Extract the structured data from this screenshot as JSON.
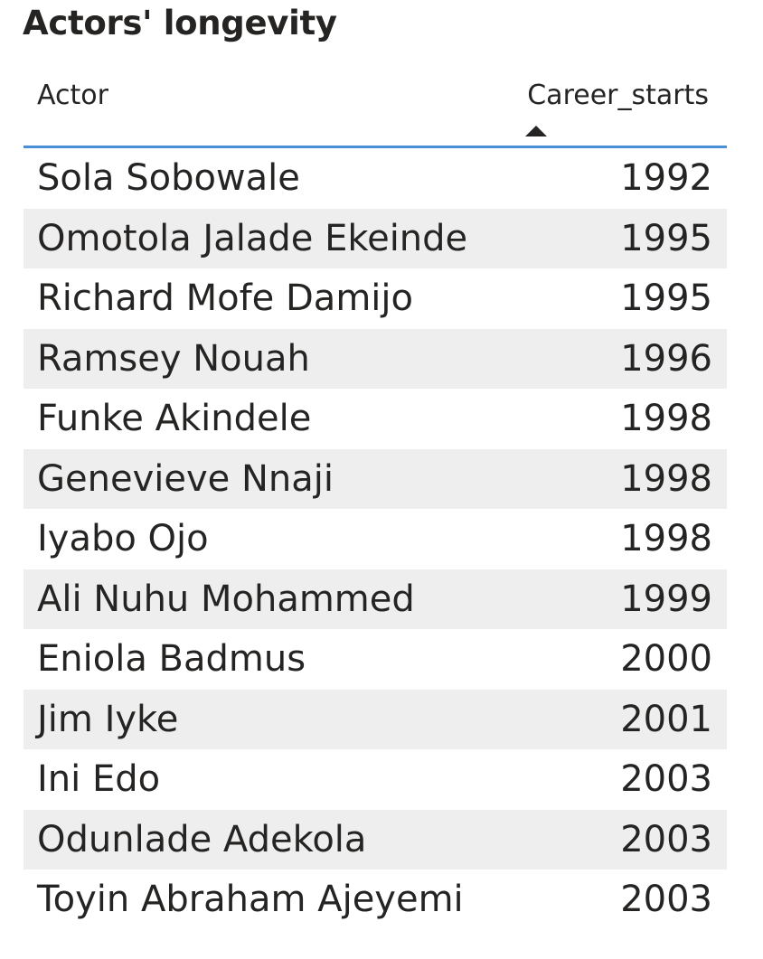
{
  "title": "Actors' longevity",
  "columns": {
    "actor": "Actor",
    "career": "Career_starts"
  },
  "sort": {
    "column": "Career_starts",
    "direction": "ascending",
    "icon": "sort-ascending-icon"
  },
  "colors": {
    "header_border": "#4a90d9",
    "alt_row": "#eeeeee",
    "text": "#252423"
  },
  "rows": [
    {
      "actor": "Sola Sobowale",
      "career": "1992"
    },
    {
      "actor": "Omotola Jalade Ekeinde",
      "career": "1995"
    },
    {
      "actor": "Richard Mofe Damijo",
      "career": "1995"
    },
    {
      "actor": "Ramsey Nouah",
      "career": "1996"
    },
    {
      "actor": "Funke Akindele",
      "career": "1998"
    },
    {
      "actor": "Genevieve Nnaji",
      "career": "1998"
    },
    {
      "actor": "Iyabo Ojo",
      "career": "1998"
    },
    {
      "actor": "Ali Nuhu Mohammed",
      "career": "1999"
    },
    {
      "actor": "Eniola Badmus",
      "career": "2000"
    },
    {
      "actor": "Jim Iyke",
      "career": "2001"
    },
    {
      "actor": "Ini Edo",
      "career": "2003"
    },
    {
      "actor": "Odunlade Adekola",
      "career": "2003"
    },
    {
      "actor": "Toyin Abraham Ajeyemi",
      "career": "2003"
    }
  ],
  "chart_data": {
    "type": "table",
    "title": "Actors' longevity",
    "columns": [
      "Actor",
      "Career_starts"
    ],
    "rows": [
      [
        "Sola Sobowale",
        1992
      ],
      [
        "Omotola Jalade Ekeinde",
        1995
      ],
      [
        "Richard Mofe Damijo",
        1995
      ],
      [
        "Ramsey Nouah",
        1996
      ],
      [
        "Funke Akindele",
        1998
      ],
      [
        "Genevieve Nnaji",
        1998
      ],
      [
        "Iyabo Ojo",
        1998
      ],
      [
        "Ali Nuhu Mohammed",
        1999
      ],
      [
        "Eniola Badmus",
        2000
      ],
      [
        "Jim Iyke",
        2001
      ],
      [
        "Ini Edo",
        2003
      ],
      [
        "Odunlade Adekola",
        2003
      ],
      [
        "Toyin Abraham Ajeyemi",
        2003
      ]
    ],
    "sorted_by": "Career_starts",
    "sort_order": "ascending"
  }
}
